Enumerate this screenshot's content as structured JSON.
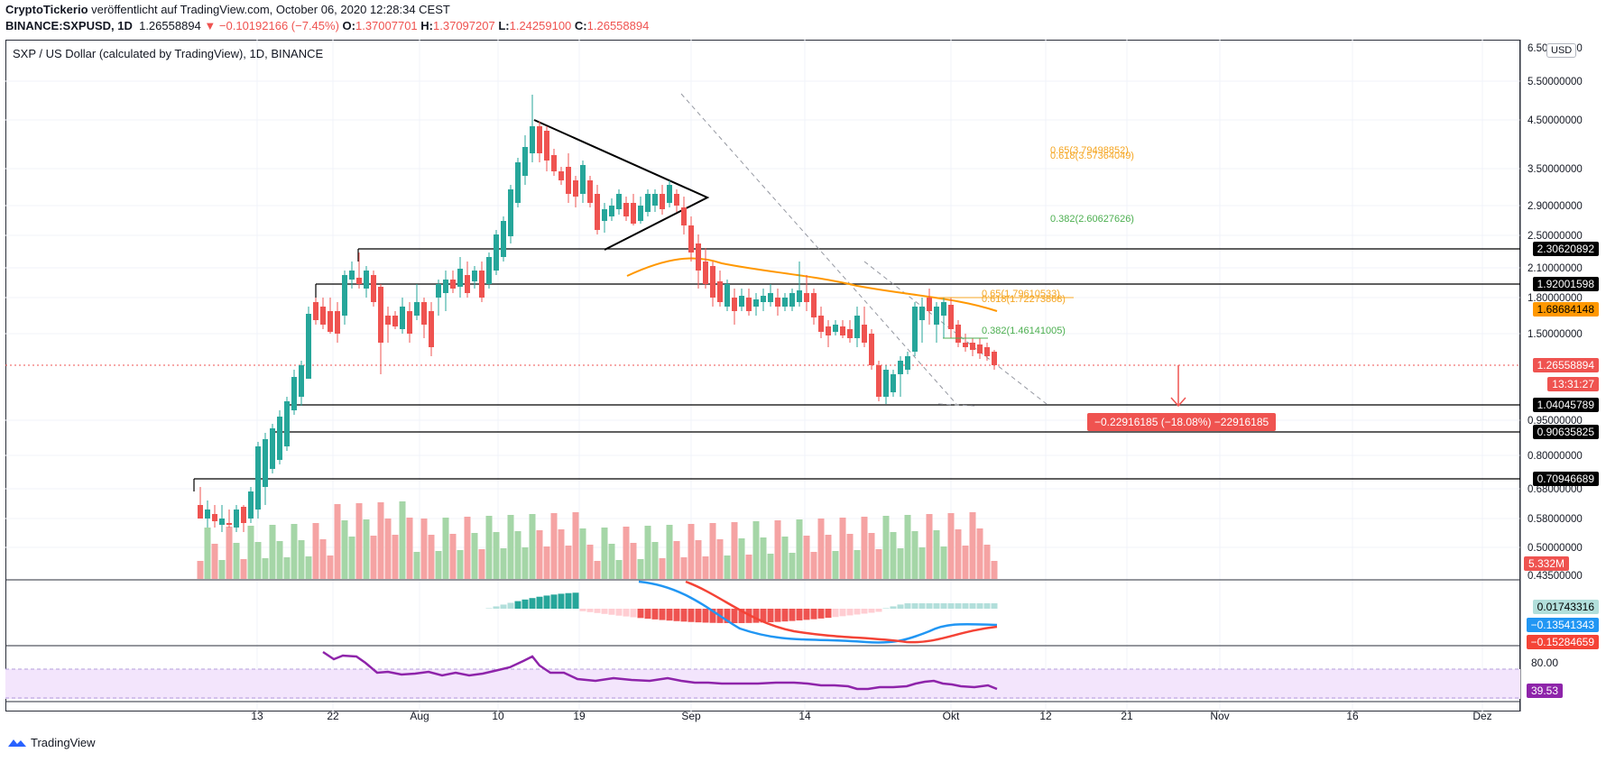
{
  "header": {
    "line1_user": "CryptoTickerio",
    "line1_rest": " veröffentlicht auf TradingView.com, October 06, 2020 12:28:34 CEST",
    "symbol": "BINANCE:SXPUSD, 1D",
    "last": "1.26558894",
    "change": "−0.10192166 (−7.45%)",
    "o_label": "O:",
    "o": "1.37007701",
    "h_label": "H:",
    "h": "1.37097207",
    "l_label": "L:",
    "l": "1.24259100",
    "c_label": "C:",
    "c": "1.26558894"
  },
  "legend": {
    "title": "SXP / US Dollar (calculated by TradingView), 1D, BINANCE"
  },
  "currency_badge": "USD",
  "price_axis_labels": [
    "6.50000000",
    "5.50000000",
    "4.50000000",
    "3.50000000",
    "2.90000000",
    "2.50000000",
    "2.10000000",
    "1.80000000",
    "1.50000000",
    "0.95000000",
    "0.80000000",
    "0.68000000",
    "0.58000000",
    "0.50000000",
    "0.43500000"
  ],
  "price_tags": {
    "level_1": "2.30620892",
    "level_2": "1.92001598",
    "ma": "1.68684148",
    "last": "1.26558894",
    "countdown": "13:31:27",
    "level_3": "1.04045789",
    "level_4": "0.90635825",
    "level_5": "0.70946689",
    "volume": "5.332M",
    "macd_hist": "0.01743316",
    "macd_line": "−0.13541343",
    "macd_signal": "−0.15284659",
    "rsi_level": "80.00",
    "rsi": "39.53"
  },
  "fib_labels": {
    "upper_65": "0.65(3.79498852)",
    "upper_618": "0.618(3.57364049)",
    "upper_382": "0.382(2.60627626)",
    "lower_65": "0.65(1.79610533)",
    "lower_618": "0.618(1.72273868)",
    "lower_382": "0.382(1.46141005)"
  },
  "measure_label": "−0.22916185 (−18.08%) −22916185",
  "time_axis": [
    "13",
    "22",
    "Aug",
    "10",
    "19",
    "Sep",
    "14",
    "Okt",
    "12",
    "21",
    "Nov",
    "16",
    "Dez"
  ],
  "footer": {
    "brand": "TradingView"
  },
  "colors": {
    "up": "#26a69a",
    "down": "#ef5350",
    "fib_gold": "#f5a623",
    "fib_green": "#4caf50",
    "ma": "#ff9800",
    "macd": "#2196f3",
    "signal": "#f44336",
    "rsi": "#8e24aa"
  }
}
